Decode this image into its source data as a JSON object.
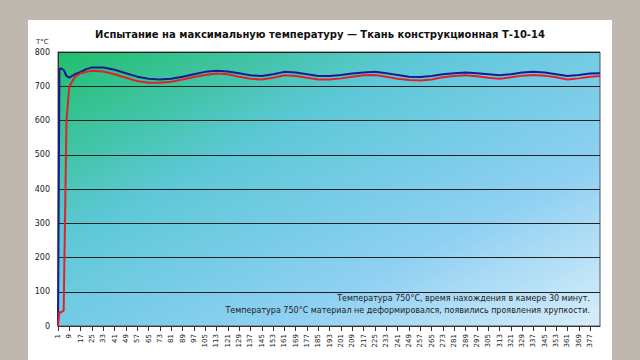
{
  "chart_data": {
    "type": "line",
    "title": "Испытание на максимальную температуру — Ткань конструкционная Т-10-14",
    "y_label": "T°C",
    "annotations": [
      "Температура 750°С, время нахождения в камере 30 минут.",
      "Температура 750°С материал не деформировался, появились проявления хрупкости."
    ],
    "x": [
      1,
      2,
      3,
      5,
      7,
      9,
      13,
      17,
      21,
      25,
      33,
      41,
      49,
      57,
      65,
      73,
      81,
      89,
      97,
      105,
      113,
      121,
      129,
      137,
      145,
      153,
      161,
      169,
      177,
      185,
      193,
      201,
      209,
      217,
      225,
      233,
      241,
      249,
      257,
      265,
      273,
      281,
      289,
      297,
      305,
      313,
      321,
      329,
      337,
      345,
      353,
      361,
      369,
      377,
      384
    ],
    "series": [
      {
        "color": "#1a1a8c",
        "values": [
          0,
          750,
          752,
          748,
          730,
          725,
          735,
          742,
          750,
          755,
          755,
          748,
          738,
          728,
          722,
          720,
          722,
          728,
          735,
          742,
          745,
          743,
          738,
          732,
          730,
          735,
          742,
          740,
          735,
          730,
          730,
          733,
          737,
          740,
          742,
          738,
          733,
          728,
          727,
          730,
          735,
          738,
          740,
          738,
          735,
          732,
          735,
          740,
          742,
          740,
          735,
          730,
          733,
          737,
          738
        ]
      },
      {
        "color": "#e0202a",
        "values": [
          0,
          40,
          40,
          45,
          600,
          700,
          728,
          738,
          742,
          745,
          743,
          735,
          725,
          715,
          710,
          710,
          713,
          720,
          727,
          733,
          737,
          735,
          728,
          722,
          720,
          725,
          732,
          730,
          725,
          720,
          720,
          723,
          728,
          732,
          733,
          728,
          722,
          718,
          717,
          720,
          726,
          730,
          732,
          729,
          725,
          722,
          726,
          731,
          733,
          731,
          726,
          720,
          723,
          728,
          730
        ]
      }
    ],
    "xlim": [
      1,
      384
    ],
    "xticks": [
      1,
      9,
      17,
      25,
      33,
      41,
      49,
      57,
      65,
      73,
      81,
      89,
      97,
      105,
      113,
      121,
      129,
      137,
      145,
      153,
      161,
      169,
      177,
      185,
      193,
      201,
      209,
      217,
      225,
      233,
      241,
      249,
      257,
      265,
      273,
      281,
      289,
      297,
      305,
      313,
      321,
      329,
      337,
      345,
      353,
      361,
      369,
      377
    ],
    "ylim": [
      0,
      800
    ],
    "yticks": [
      0,
      100,
      200,
      300,
      400,
      500,
      600,
      700,
      800
    ],
    "grid": true
  }
}
